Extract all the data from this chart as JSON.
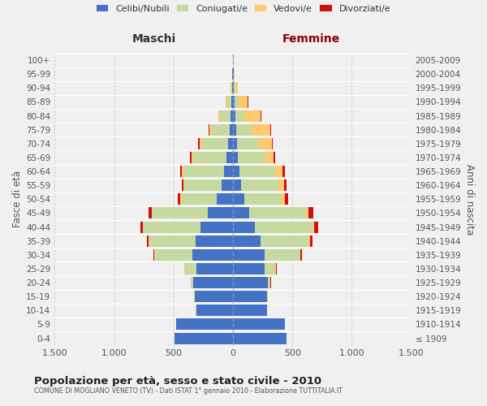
{
  "age_groups": [
    "100+",
    "95-99",
    "90-94",
    "85-89",
    "80-84",
    "75-79",
    "70-74",
    "65-69",
    "60-64",
    "55-59",
    "50-54",
    "45-49",
    "40-44",
    "35-39",
    "30-34",
    "25-29",
    "20-24",
    "15-19",
    "10-14",
    "5-9",
    "0-4"
  ],
  "birth_years": [
    "≤ 1909",
    "1910-1914",
    "1915-1919",
    "1920-1924",
    "1925-1929",
    "1930-1934",
    "1935-1939",
    "1940-1944",
    "1945-1949",
    "1950-1954",
    "1955-1959",
    "1960-1964",
    "1965-1969",
    "1970-1974",
    "1975-1979",
    "1980-1984",
    "1985-1989",
    "1990-1994",
    "1995-1999",
    "2000-2004",
    "2005-2009"
  ],
  "colors": {
    "single": "#4472c4",
    "married": "#c5d9a0",
    "widowed": "#ffc96e",
    "divorced": "#d01010"
  },
  "males": {
    "single": [
      3,
      4,
      7,
      12,
      18,
      25,
      38,
      55,
      75,
      95,
      135,
      215,
      275,
      315,
      340,
      305,
      335,
      320,
      310,
      475,
      490
    ],
    "married": [
      0,
      2,
      8,
      42,
      92,
      160,
      230,
      280,
      340,
      315,
      305,
      465,
      475,
      390,
      315,
      100,
      18,
      4,
      2,
      2,
      2
    ],
    "widowed": [
      0,
      0,
      3,
      8,
      12,
      12,
      15,
      12,
      12,
      8,
      6,
      5,
      5,
      5,
      4,
      4,
      2,
      1,
      0,
      0,
      0
    ],
    "divorced": [
      0,
      0,
      0,
      2,
      4,
      8,
      10,
      12,
      15,
      14,
      18,
      22,
      22,
      16,
      8,
      3,
      2,
      1,
      0,
      0,
      0
    ]
  },
  "females": {
    "single": [
      3,
      5,
      10,
      15,
      20,
      28,
      35,
      42,
      55,
      65,
      95,
      135,
      185,
      235,
      268,
      268,
      295,
      285,
      285,
      435,
      448
    ],
    "married": [
      0,
      2,
      8,
      35,
      78,
      130,
      185,
      225,
      298,
      318,
      308,
      478,
      482,
      402,
      292,
      90,
      18,
      4,
      3,
      2,
      2
    ],
    "widowed": [
      2,
      8,
      22,
      75,
      135,
      155,
      105,
      75,
      65,
      45,
      32,
      22,
      18,
      12,
      10,
      7,
      4,
      2,
      1,
      0,
      0
    ],
    "divorced": [
      0,
      0,
      0,
      3,
      5,
      8,
      10,
      15,
      20,
      20,
      28,
      38,
      32,
      18,
      10,
      4,
      2,
      1,
      0,
      0,
      0
    ]
  },
  "xlim": 1500,
  "title": "Popolazione per età, sesso e stato civile - 2010",
  "subtitle": "COMUNE DI MOGLIANO VENETO (TV) - Dati ISTAT 1° gennaio 2010 - Elaborazione TUTTITALIA.IT",
  "ylabel_left": "Fasce di età",
  "ylabel_right": "Anni di nascita",
  "xlabel_left": "Maschi",
  "xlabel_right": "Femmine",
  "background_color": "#f0f0f0",
  "bar_height": 0.82,
  "xticks": [
    -1500,
    -1000,
    -500,
    0,
    500,
    1000,
    1500
  ],
  "xtick_labels": [
    "1.500",
    "1.000",
    "500",
    "0",
    "500",
    "1.000",
    "1.500"
  ]
}
